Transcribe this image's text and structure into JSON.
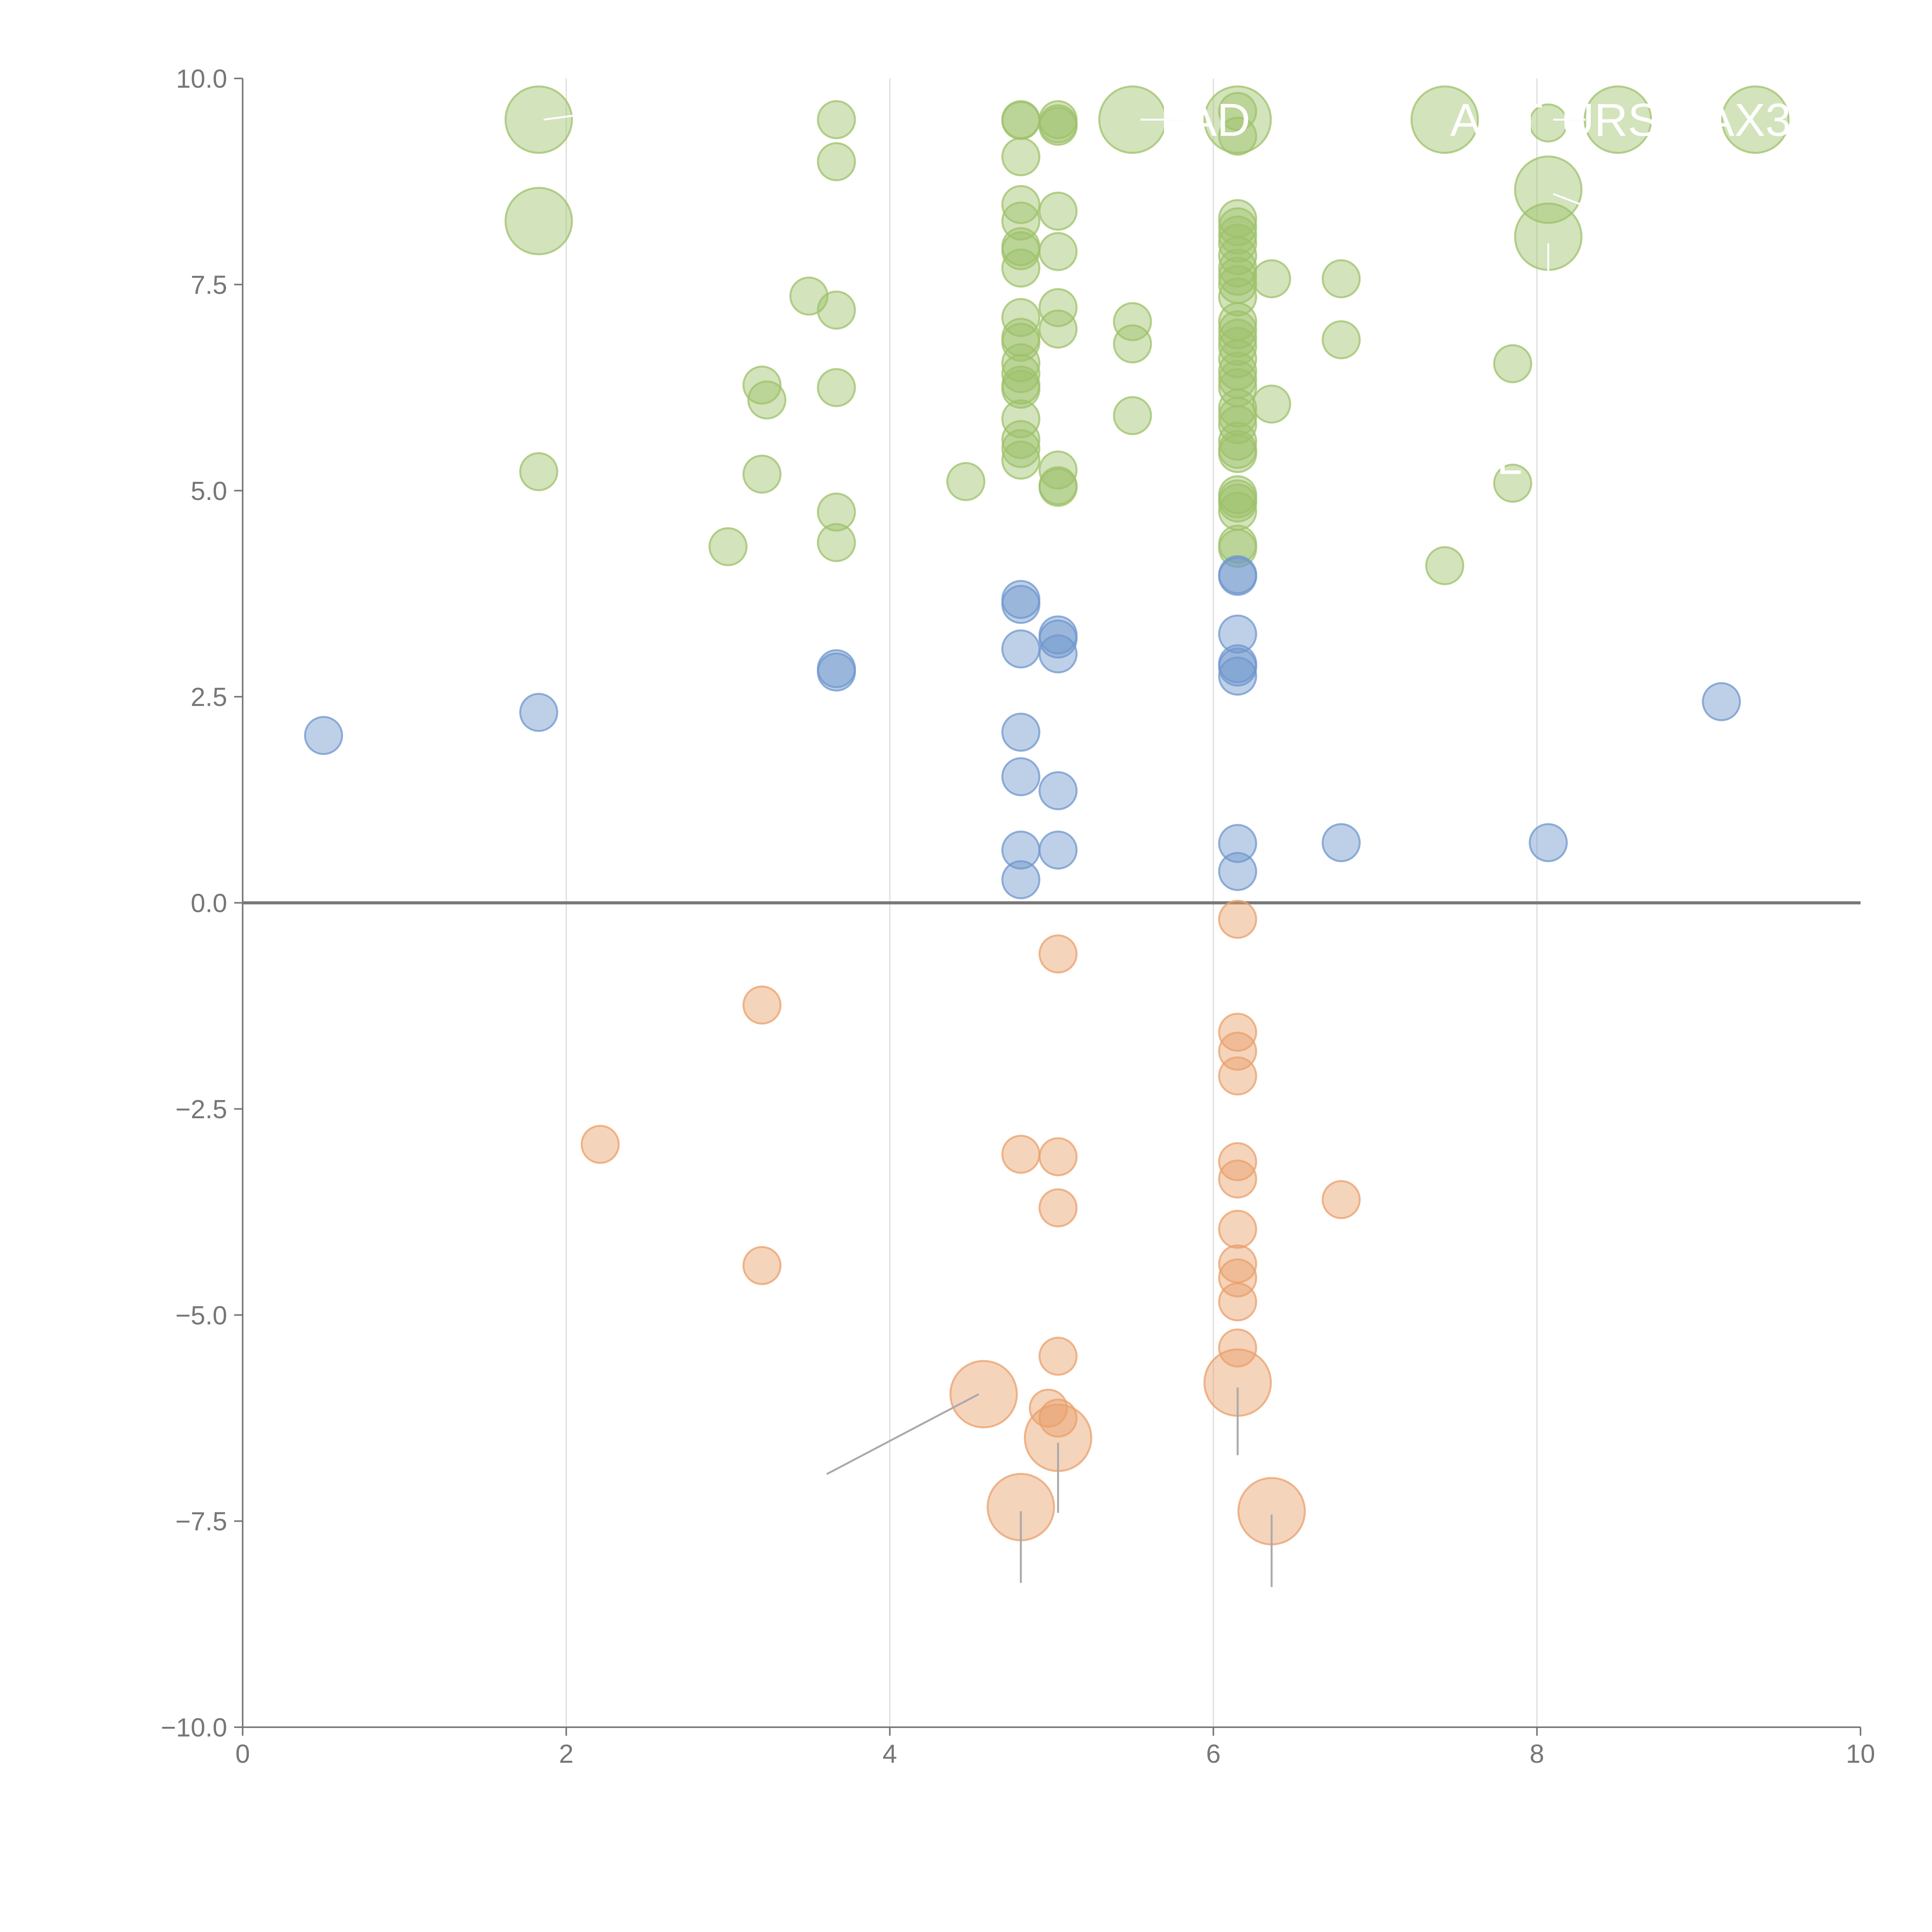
{
  "chart_data": {
    "type": "scatter",
    "title": "",
    "xlabel": "",
    "ylabel": "",
    "xlim": [
      0,
      10
    ],
    "ylim": [
      -10,
      10
    ],
    "grid": "vertical",
    "x_ticks": [
      "0",
      "2",
      "4",
      "6",
      "8",
      "10"
    ],
    "y_ticks": [
      "10.0",
      "7.5",
      "5.0",
      "2.5",
      "0.0",
      "−2.5",
      "−5.0",
      "−7.5",
      "−10.0"
    ],
    "series": [
      {
        "name": "positive",
        "color": "#9dc26a",
        "points": [
          [
            1.83,
            9.5,
            2
          ],
          [
            1.83,
            8.27,
            2
          ],
          [
            1.83,
            5.23,
            1
          ],
          [
            3.67,
            9.5,
            1
          ],
          [
            3.67,
            8.99,
            1
          ],
          [
            3.67,
            7.19,
            1
          ],
          [
            3.67,
            6.25,
            1
          ],
          [
            3.67,
            4.74,
            1
          ],
          [
            3.67,
            4.37,
            1
          ],
          [
            3.5,
            7.36,
            1
          ],
          [
            3.21,
            6.28,
            1
          ],
          [
            3.24,
            6.1,
            1
          ],
          [
            3.21,
            5.2,
            1
          ],
          [
            3.0,
            4.32,
            1
          ],
          [
            4.47,
            5.11,
            1
          ],
          [
            4.81,
            9.5,
            1
          ],
          [
            4.81,
            9.49,
            1
          ],
          [
            4.81,
            9.05,
            1
          ],
          [
            4.81,
            8.47,
            1
          ],
          [
            4.81,
            8.27,
            1
          ],
          [
            4.81,
            7.96,
            1
          ],
          [
            4.81,
            7.91,
            1
          ],
          [
            4.81,
            7.7,
            1
          ],
          [
            4.81,
            7.1,
            1
          ],
          [
            4.81,
            6.86,
            1
          ],
          [
            4.81,
            6.8,
            1
          ],
          [
            4.81,
            6.55,
            1
          ],
          [
            4.81,
            6.42,
            1
          ],
          [
            4.81,
            6.28,
            1
          ],
          [
            4.81,
            6.23,
            1
          ],
          [
            4.81,
            5.87,
            1
          ],
          [
            4.81,
            5.62,
            1
          ],
          [
            4.81,
            5.51,
            1
          ],
          [
            4.81,
            5.37,
            1
          ],
          [
            5.04,
            9.5,
            1
          ],
          [
            5.04,
            9.45,
            1
          ],
          [
            5.04,
            9.42,
            1
          ],
          [
            5.04,
            8.39,
            1
          ],
          [
            5.04,
            7.9,
            1
          ],
          [
            5.04,
            7.22,
            1
          ],
          [
            5.04,
            6.96,
            1
          ],
          [
            5.04,
            5.25,
            1
          ],
          [
            5.04,
            5.06,
            1
          ],
          [
            5.04,
            5.04,
            1
          ],
          [
            5.5,
            9.5,
            2
          ],
          [
            5.5,
            7.05,
            1
          ],
          [
            5.5,
            6.78,
            1
          ],
          [
            5.5,
            5.91,
            1
          ],
          [
            6.15,
            9.6,
            1
          ],
          [
            6.15,
            9.5,
            2
          ],
          [
            6.15,
            9.3,
            1
          ],
          [
            6.15,
            8.3,
            1
          ],
          [
            6.15,
            8.2,
            1
          ],
          [
            6.15,
            8.1,
            1
          ],
          [
            6.15,
            8.0,
            1
          ],
          [
            6.15,
            7.85,
            1
          ],
          [
            6.15,
            7.7,
            1
          ],
          [
            6.15,
            7.6,
            1
          ],
          [
            6.15,
            7.5,
            1
          ],
          [
            6.15,
            7.35,
            1
          ],
          [
            6.15,
            7.05,
            1
          ],
          [
            6.15,
            6.95,
            1
          ],
          [
            6.15,
            6.85,
            1
          ],
          [
            6.15,
            6.75,
            1
          ],
          [
            6.15,
            6.6,
            1
          ],
          [
            6.15,
            6.45,
            1
          ],
          [
            6.15,
            6.35,
            1
          ],
          [
            6.15,
            6.25,
            1
          ],
          [
            6.15,
            6.0,
            1
          ],
          [
            6.15,
            5.9,
            1
          ],
          [
            6.15,
            5.8,
            1
          ],
          [
            6.15,
            5.6,
            1
          ],
          [
            6.15,
            5.5,
            1
          ],
          [
            6.15,
            5.45,
            1
          ],
          [
            6.15,
            4.95,
            1
          ],
          [
            6.15,
            4.9,
            1
          ],
          [
            6.15,
            4.85,
            1
          ],
          [
            6.15,
            4.75,
            1
          ],
          [
            6.15,
            4.35,
            1
          ],
          [
            6.15,
            4.3,
            1
          ],
          [
            6.36,
            7.57,
            1
          ],
          [
            6.36,
            6.05,
            1
          ],
          [
            6.79,
            7.57,
            1
          ],
          [
            6.79,
            6.83,
            1
          ],
          [
            7.43,
            9.5,
            2
          ],
          [
            7.43,
            4.09,
            1
          ],
          [
            7.85,
            6.54,
            1
          ],
          [
            7.85,
            5.09,
            1
          ],
          [
            8.07,
            9.46,
            1
          ],
          [
            8.07,
            8.65,
            2
          ],
          [
            8.07,
            8.08,
            2
          ],
          [
            8.5,
            9.5,
            2
          ],
          [
            9.35,
            9.5,
            2
          ]
        ]
      },
      {
        "name": "low",
        "color": "#6f97cd",
        "points": [
          [
            0.5,
            2.03,
            1
          ],
          [
            1.83,
            2.31,
            1
          ],
          [
            3.67,
            2.84,
            1
          ],
          [
            3.67,
            2.8,
            1
          ],
          [
            4.81,
            3.68,
            1
          ],
          [
            4.81,
            3.62,
            1
          ],
          [
            4.81,
            3.08,
            1
          ],
          [
            4.81,
            2.07,
            1
          ],
          [
            4.81,
            1.53,
            1
          ],
          [
            4.81,
            0.64,
            1
          ],
          [
            4.81,
            0.28,
            1
          ],
          [
            5.04,
            3.25,
            1
          ],
          [
            5.04,
            3.2,
            1
          ],
          [
            5.04,
            3.02,
            1
          ],
          [
            5.04,
            1.36,
            1
          ],
          [
            5.04,
            0.64,
            1
          ],
          [
            6.15,
            3.98,
            1
          ],
          [
            6.15,
            3.96,
            1
          ],
          [
            6.15,
            3.26,
            1
          ],
          [
            6.15,
            2.9,
            1
          ],
          [
            6.15,
            2.86,
            1
          ],
          [
            6.15,
            2.75,
            1
          ],
          [
            6.15,
            0.72,
            1
          ],
          [
            6.15,
            0.38,
            1
          ],
          [
            6.79,
            0.73,
            1
          ],
          [
            8.07,
            0.73,
            1
          ],
          [
            9.14,
            2.44,
            1
          ]
        ]
      },
      {
        "name": "negative",
        "color": "#e9a06b",
        "points": [
          [
            2.21,
            -2.93,
            1
          ],
          [
            3.21,
            -1.24,
            1
          ],
          [
            3.21,
            -4.4,
            1
          ],
          [
            4.81,
            -3.05,
            1
          ],
          [
            5.04,
            -0.62,
            1
          ],
          [
            5.04,
            -3.08,
            1
          ],
          [
            5.04,
            -3.7,
            1
          ],
          [
            5.04,
            -5.5,
            1
          ],
          [
            4.98,
            -6.13,
            1
          ],
          [
            5.04,
            -6.25,
            1
          ],
          [
            4.58,
            -5.96,
            2
          ],
          [
            5.04,
            -6.49,
            2
          ],
          [
            4.81,
            -7.33,
            2
          ],
          [
            6.15,
            -0.2,
            1
          ],
          [
            6.15,
            -1.57,
            1
          ],
          [
            6.15,
            -1.8,
            1
          ],
          [
            6.15,
            -2.1,
            1
          ],
          [
            6.15,
            -3.14,
            1
          ],
          [
            6.15,
            -3.35,
            1
          ],
          [
            6.15,
            -3.96,
            1
          ],
          [
            6.15,
            -4.38,
            1
          ],
          [
            6.15,
            -4.55,
            1
          ],
          [
            6.15,
            -4.84,
            1
          ],
          [
            6.15,
            -5.4,
            1
          ],
          [
            6.15,
            -5.82,
            2
          ],
          [
            6.36,
            -7.38,
            2
          ],
          [
            6.79,
            -3.6,
            1
          ]
        ]
      }
    ],
    "annotations": [
      {
        "text": "LAD",
        "x": 5.5,
        "y": 9.5,
        "label_x": 5.95,
        "label_y": 9.5,
        "color": "white"
      },
      {
        "text": "ACT",
        "x": 7.43,
        "y": 9.5,
        "label_x": 7.75,
        "label_y": 9.5,
        "color": "white"
      },
      {
        "text": "URS",
        "x": 8.5,
        "y": 9.5,
        "label_x": 8.45,
        "label_y": 9.5,
        "color": "white"
      },
      {
        "text": "AX3",
        "x": 9.35,
        "y": 9.5,
        "label_x": 9.3,
        "label_y": 9.5,
        "color": "white"
      },
      {
        "text": "L",
        "x": 8.07,
        "y": 8.08,
        "label_x": 7.83,
        "label_y": 5.4,
        "color": "white"
      }
    ],
    "leader_lines": [
      {
        "x1": 1.86,
        "y1": 9.5,
        "x2": 2.05,
        "y2": 9.55
      },
      {
        "x1": 5.55,
        "y1": 9.5,
        "x2": 5.8,
        "y2": 9.5
      },
      {
        "x1": 8.1,
        "y1": 9.5,
        "x2": 8.3,
        "y2": 9.5
      },
      {
        "x1": 8.1,
        "y1": 8.6,
        "x2": 8.3,
        "y2": 8.45
      },
      {
        "x1": 8.07,
        "y1": 7.6,
        "x2": 8.07,
        "y2": 8.0
      },
      {
        "x1": 4.55,
        "y1": -5.96,
        "x2": 3.61,
        "y2": -6.93
      },
      {
        "x1": 5.04,
        "y1": -6.55,
        "x2": 5.04,
        "y2": -7.4
      },
      {
        "x1": 4.81,
        "y1": -7.38,
        "x2": 4.81,
        "y2": -8.25
      },
      {
        "x1": 6.15,
        "y1": -5.88,
        "x2": 6.15,
        "y2": -6.7
      },
      {
        "x1": 6.36,
        "y1": -7.42,
        "x2": 6.36,
        "y2": -8.3
      }
    ]
  }
}
